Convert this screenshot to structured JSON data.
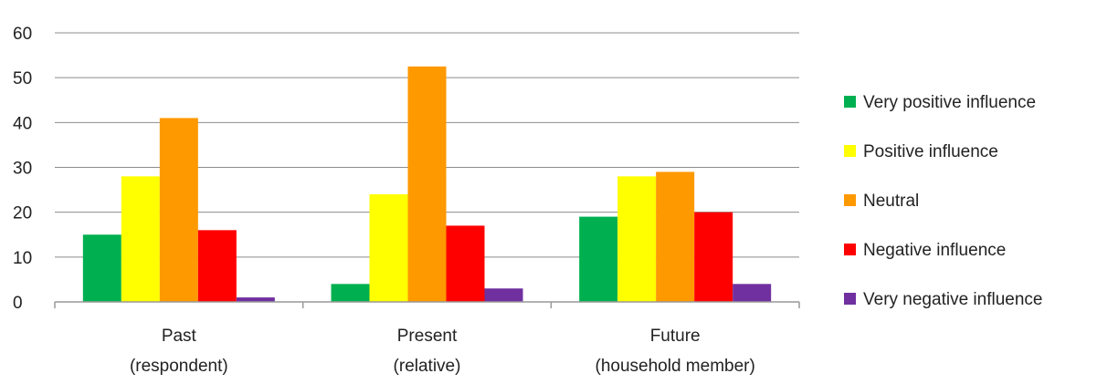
{
  "chart_data": {
    "type": "bar",
    "categories": [
      [
        "Past",
        "(respondent)"
      ],
      [
        "Present",
        "(relative)"
      ],
      [
        "Future",
        "(household  member)"
      ]
    ],
    "series": [
      {
        "name": "Very positive influence",
        "color": "#00b050",
        "values": [
          15,
          4,
          19
        ]
      },
      {
        "name": "Positive influence",
        "color": "#ffff00",
        "values": [
          28,
          24,
          28
        ]
      },
      {
        "name": "Neutral",
        "color": "#ff9900",
        "values": [
          41,
          52.5,
          29
        ]
      },
      {
        "name": "Negative influence",
        "color": "#ff0000",
        "values": [
          16,
          17,
          20
        ]
      },
      {
        "name": "Very negative influence",
        "color": "#7030a0",
        "values": [
          1,
          3,
          4
        ]
      }
    ],
    "yticks": [
      "0",
      "10",
      "20",
      "30",
      "40",
      "50",
      "60"
    ],
    "ylim": [
      0,
      60
    ],
    "grid": true,
    "legend": "right",
    "title": "",
    "xlabel": "",
    "ylabel": ""
  }
}
